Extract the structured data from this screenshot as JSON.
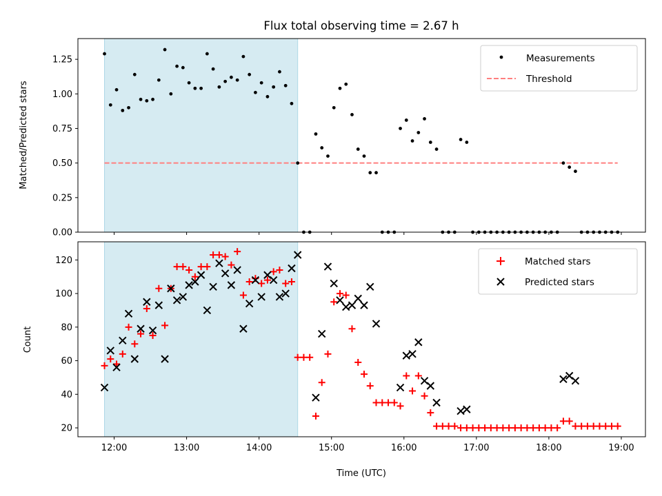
{
  "chart_data": [
    {
      "type": "scatter",
      "title": "Flux total observing time = 2.67 h",
      "xlabel": "",
      "ylabel": "Matched/Predicted stars",
      "xlim": [
        "11:30",
        "19:20"
      ],
      "ylim": [
        0,
        1.4
      ],
      "y_ticks": [
        "0.00",
        "0.25",
        "0.50",
        "0.75",
        "1.00",
        "1.25"
      ],
      "shaded_band": {
        "from": "11:52",
        "to": "14:32",
        "color": "#add8e6"
      },
      "threshold": {
        "name": "Threshold",
        "value": 0.5,
        "from": "11:52",
        "to": "18:57",
        "color": "#ff7f7f"
      },
      "legend": "top-right",
      "series": [
        {
          "name": "Measurements",
          "color": "#000000",
          "points": [
            [
              "11:52",
              1.29
            ],
            [
              "11:57",
              0.92
            ],
            [
              "12:02",
              1.03
            ],
            [
              "12:07",
              0.88
            ],
            [
              "12:12",
              0.9
            ],
            [
              "12:17",
              1.14
            ],
            [
              "12:22",
              0.96
            ],
            [
              "12:27",
              0.95
            ],
            [
              "12:32",
              0.96
            ],
            [
              "12:37",
              1.1
            ],
            [
              "12:42",
              1.32
            ],
            [
              "12:47",
              1.0
            ],
            [
              "12:52",
              1.2
            ],
            [
              "12:57",
              1.19
            ],
            [
              "13:02",
              1.08
            ],
            [
              "13:07",
              1.04
            ],
            [
              "13:12",
              1.04
            ],
            [
              "13:17",
              1.29
            ],
            [
              "13:22",
              1.18
            ],
            [
              "13:27",
              1.05
            ],
            [
              "13:32",
              1.09
            ],
            [
              "13:37",
              1.12
            ],
            [
              "13:42",
              1.1
            ],
            [
              "13:47",
              1.27
            ],
            [
              "13:52",
              1.14
            ],
            [
              "13:57",
              1.01
            ],
            [
              "14:02",
              1.08
            ],
            [
              "14:07",
              0.98
            ],
            [
              "14:12",
              1.05
            ],
            [
              "14:17",
              1.16
            ],
            [
              "14:22",
              1.06
            ],
            [
              "14:27",
              0.93
            ],
            [
              "14:32",
              0.5
            ],
            [
              "14:37",
              0.0
            ],
            [
              "14:42",
              0.0
            ],
            [
              "14:47",
              0.71
            ],
            [
              "14:52",
              0.61
            ],
            [
              "14:57",
              0.55
            ],
            [
              "15:02",
              0.9
            ],
            [
              "15:07",
              1.04
            ],
            [
              "15:12",
              1.07
            ],
            [
              "15:17",
              0.85
            ],
            [
              "15:22",
              0.6
            ],
            [
              "15:27",
              0.55
            ],
            [
              "15:32",
              0.43
            ],
            [
              "15:37",
              0.43
            ],
            [
              "15:42",
              0.0
            ],
            [
              "15:47",
              0.0
            ],
            [
              "15:52",
              0.0
            ],
            [
              "15:57",
              0.75
            ],
            [
              "16:02",
              0.81
            ],
            [
              "16:07",
              0.66
            ],
            [
              "16:12",
              0.72
            ],
            [
              "16:17",
              0.82
            ],
            [
              "16:22",
              0.65
            ],
            [
              "16:27",
              0.6
            ],
            [
              "16:32",
              0.0
            ],
            [
              "16:37",
              0.0
            ],
            [
              "16:42",
              0.0
            ],
            [
              "16:47",
              0.67
            ],
            [
              "16:52",
              0.65
            ],
            [
              "16:57",
              0.0
            ],
            [
              "17:02",
              0.0
            ],
            [
              "17:07",
              0.0
            ],
            [
              "17:12",
              0.0
            ],
            [
              "17:17",
              0.0
            ],
            [
              "17:22",
              0.0
            ],
            [
              "17:27",
              0.0
            ],
            [
              "17:32",
              0.0
            ],
            [
              "17:37",
              0.0
            ],
            [
              "17:42",
              0.0
            ],
            [
              "17:47",
              0.0
            ],
            [
              "17:52",
              0.0
            ],
            [
              "17:57",
              0.0
            ],
            [
              "18:02",
              0.0
            ],
            [
              "18:07",
              0.0
            ],
            [
              "18:12",
              0.5
            ],
            [
              "18:17",
              0.47
            ],
            [
              "18:22",
              0.44
            ],
            [
              "18:27",
              0.0
            ],
            [
              "18:32",
              0.0
            ],
            [
              "18:37",
              0.0
            ],
            [
              "18:42",
              0.0
            ],
            [
              "18:47",
              0.0
            ],
            [
              "18:52",
              0.0
            ],
            [
              "18:57",
              0.0
            ]
          ]
        }
      ]
    },
    {
      "type": "scatter",
      "title": "",
      "xlabel": "Time (UTC)",
      "ylabel": "Count",
      "xlim": [
        "11:30",
        "19:20"
      ],
      "ylim": [
        14.7,
        130.8
      ],
      "x_ticks": [
        "12:00",
        "13:00",
        "14:00",
        "15:00",
        "16:00",
        "17:00",
        "18:00",
        "19:00"
      ],
      "y_ticks": [
        "20",
        "40",
        "60",
        "80",
        "100",
        "120"
      ],
      "shaded_band": {
        "from": "11:52",
        "to": "14:32",
        "color": "#add8e6"
      },
      "legend": "top-right",
      "series": [
        {
          "name": "Matched stars",
          "marker": "plus",
          "color": "#ff0000",
          "points": [
            [
              "11:52",
              57
            ],
            [
              "11:57",
              61
            ],
            [
              "12:02",
              58
            ],
            [
              "12:07",
              64
            ],
            [
              "12:12",
              80
            ],
            [
              "12:17",
              70
            ],
            [
              "12:22",
              76
            ],
            [
              "12:27",
              91
            ],
            [
              "12:32",
              75
            ],
            [
              "12:37",
              103
            ],
            [
              "12:42",
              81
            ],
            [
              "12:47",
              103
            ],
            [
              "12:52",
              116
            ],
            [
              "12:57",
              116
            ],
            [
              "13:02",
              114
            ],
            [
              "13:07",
              110
            ],
            [
              "13:12",
              116
            ],
            [
              "13:17",
              116
            ],
            [
              "13:22",
              123
            ],
            [
              "13:27",
              123
            ],
            [
              "13:32",
              122
            ],
            [
              "13:37",
              117
            ],
            [
              "13:42",
              125
            ],
            [
              "13:47",
              99
            ],
            [
              "13:52",
              107
            ],
            [
              "13:57",
              109
            ],
            [
              "14:02",
              106
            ],
            [
              "14:07",
              108
            ],
            [
              "14:12",
              113
            ],
            [
              "14:17",
              114
            ],
            [
              "14:22",
              106
            ],
            [
              "14:27",
              107
            ],
            [
              "14:32",
              62
            ],
            [
              "14:37",
              62
            ],
            [
              "14:42",
              62
            ],
            [
              "14:47",
              27
            ],
            [
              "14:52",
              47
            ],
            [
              "14:57",
              64
            ],
            [
              "15:02",
              95
            ],
            [
              "15:07",
              100
            ],
            [
              "15:12",
              99
            ],
            [
              "15:17",
              79
            ],
            [
              "15:22",
              59
            ],
            [
              "15:27",
              52
            ],
            [
              "15:32",
              45
            ],
            [
              "15:37",
              35
            ],
            [
              "15:42",
              35
            ],
            [
              "15:47",
              35
            ],
            [
              "15:52",
              35
            ],
            [
              "15:57",
              33
            ],
            [
              "16:02",
              51
            ],
            [
              "16:07",
              42
            ],
            [
              "16:12",
              51
            ],
            [
              "16:17",
              39
            ],
            [
              "16:22",
              29
            ],
            [
              "16:27",
              21
            ],
            [
              "16:32",
              21
            ],
            [
              "16:37",
              21
            ],
            [
              "16:42",
              21
            ],
            [
              "16:47",
              20
            ],
            [
              "16:52",
              20
            ],
            [
              "16:57",
              20
            ],
            [
              "17:02",
              20
            ],
            [
              "17:07",
              20
            ],
            [
              "17:12",
              20
            ],
            [
              "17:17",
              20
            ],
            [
              "17:22",
              20
            ],
            [
              "17:27",
              20
            ],
            [
              "17:32",
              20
            ],
            [
              "17:37",
              20
            ],
            [
              "17:42",
              20
            ],
            [
              "17:47",
              20
            ],
            [
              "17:52",
              20
            ],
            [
              "17:57",
              20
            ],
            [
              "18:02",
              20
            ],
            [
              "18:07",
              20
            ],
            [
              "18:12",
              24
            ],
            [
              "18:17",
              24
            ],
            [
              "18:22",
              21
            ],
            [
              "18:27",
              21
            ],
            [
              "18:32",
              21
            ],
            [
              "18:37",
              21
            ],
            [
              "18:42",
              21
            ],
            [
              "18:47",
              21
            ],
            [
              "18:52",
              21
            ],
            [
              "18:57",
              21
            ]
          ]
        },
        {
          "name": "Predicted stars",
          "marker": "x",
          "color": "#000000",
          "points": [
            [
              "11:52",
              44
            ],
            [
              "11:57",
              66
            ],
            [
              "12:02",
              56
            ],
            [
              "12:07",
              72
            ],
            [
              "12:12",
              88
            ],
            [
              "12:17",
              61
            ],
            [
              "12:22",
              79
            ],
            [
              "12:27",
              95
            ],
            [
              "12:32",
              78
            ],
            [
              "12:37",
              93
            ],
            [
              "12:42",
              61
            ],
            [
              "12:47",
              103
            ],
            [
              "12:52",
              96
            ],
            [
              "12:57",
              98
            ],
            [
              "13:02",
              105
            ],
            [
              "13:07",
              107
            ],
            [
              "13:12",
              111
            ],
            [
              "13:17",
              90
            ],
            [
              "13:22",
              104
            ],
            [
              "13:27",
              118
            ],
            [
              "13:32",
              112
            ],
            [
              "13:37",
              105
            ],
            [
              "13:42",
              114
            ],
            [
              "13:47",
              79
            ],
            [
              "13:52",
              94
            ],
            [
              "13:57",
              108
            ],
            [
              "14:02",
              98
            ],
            [
              "14:07",
              111
            ],
            [
              "14:12",
              108
            ],
            [
              "14:17",
              98
            ],
            [
              "14:22",
              100
            ],
            [
              "14:27",
              115
            ],
            [
              "14:32",
              123
            ],
            [
              "14:47",
              38
            ],
            [
              "14:52",
              76
            ],
            [
              "14:57",
              116
            ],
            [
              "15:02",
              106
            ],
            [
              "15:07",
              96
            ],
            [
              "15:12",
              92
            ],
            [
              "15:17",
              93
            ],
            [
              "15:22",
              97
            ],
            [
              "15:27",
              93
            ],
            [
              "15:32",
              104
            ],
            [
              "15:37",
              82
            ],
            [
              "15:57",
              44
            ],
            [
              "16:02",
              63
            ],
            [
              "16:07",
              64
            ],
            [
              "16:12",
              71
            ],
            [
              "16:17",
              48
            ],
            [
              "16:22",
              45
            ],
            [
              "16:27",
              35
            ],
            [
              "16:47",
              30
            ],
            [
              "16:52",
              31
            ],
            [
              "18:12",
              49
            ],
            [
              "18:17",
              51
            ],
            [
              "18:22",
              48
            ]
          ]
        }
      ]
    }
  ]
}
